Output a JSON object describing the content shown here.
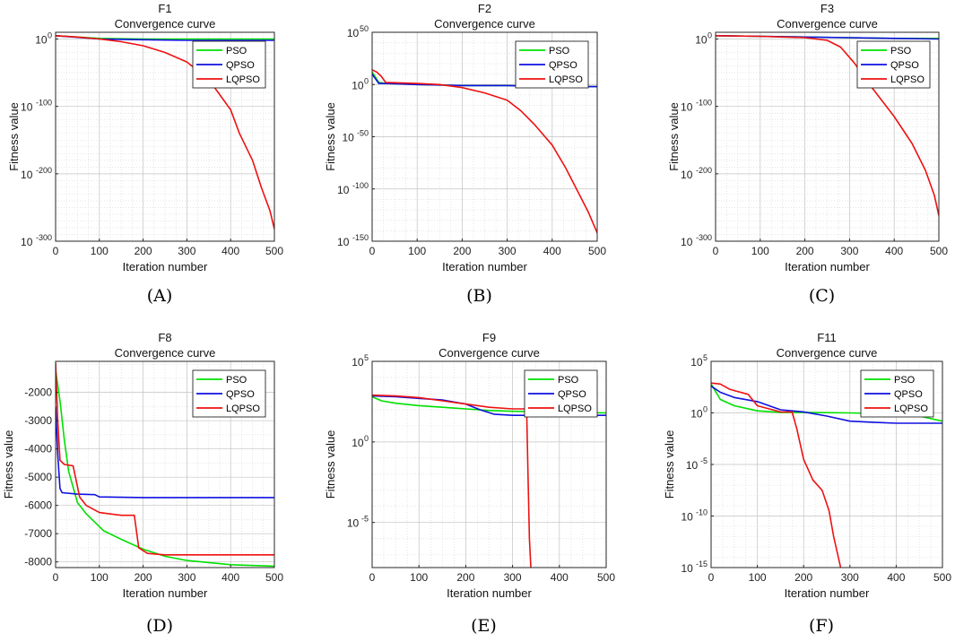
{
  "colors": {
    "PSO": "#00e000",
    "QPSO": "#1010e0",
    "LQPSO": "#ee1111",
    "grid": "#d6d6d6",
    "axis": "#262626"
  },
  "chart_data": [
    {
      "panel": "A",
      "caption": "(A)",
      "function_label": "F1",
      "title": "Convergence curve",
      "type": "line",
      "yscale": "log10",
      "xlabel": "Iteration number",
      "ylabel": "Fitness value",
      "xlim": [
        0,
        500
      ],
      "ylim": [
        -300,
        10
      ],
      "xticks": [
        "0",
        "100",
        "200",
        "300",
        "400",
        "500"
      ],
      "yticks": [
        {
          "base": "10",
          "exp": "0",
          "value": 0
        },
        {
          "base": "10",
          "exp": "-100",
          "value": -100
        },
        {
          "base": "10",
          "exp": "-200",
          "value": -200
        },
        {
          "base": "10",
          "exp": "-300",
          "value": -300
        }
      ],
      "legend": [
        "PSO",
        "QPSO",
        "LQPSO"
      ],
      "series": [
        {
          "name": "PSO",
          "points": [
            [
              0,
              5
            ],
            [
              100,
              1
            ],
            [
              200,
              0
            ],
            [
              300,
              0
            ],
            [
              400,
              0
            ],
            [
              500,
              0
            ]
          ]
        },
        {
          "name": "QPSO",
          "points": [
            [
              0,
              5
            ],
            [
              100,
              0
            ],
            [
              200,
              -1
            ],
            [
              300,
              -2
            ],
            [
              400,
              -2
            ],
            [
              500,
              -2
            ]
          ]
        },
        {
          "name": "LQPSO",
          "points": [
            [
              0,
              5
            ],
            [
              50,
              3
            ],
            [
              100,
              0
            ],
            [
              150,
              -4
            ],
            [
              200,
              -10
            ],
            [
              250,
              -20
            ],
            [
              300,
              -34
            ],
            [
              350,
              -60
            ],
            [
              400,
              -105
            ],
            [
              420,
              -140
            ],
            [
              450,
              -180
            ],
            [
              470,
              -220
            ],
            [
              490,
              -255
            ],
            [
              500,
              -282
            ]
          ]
        }
      ]
    },
    {
      "panel": "B",
      "caption": "(B)",
      "function_label": "F2",
      "title": "Convergence curve",
      "type": "line",
      "yscale": "log10",
      "xlabel": "Iteration number",
      "ylabel": "Fitness value",
      "xlim": [
        0,
        500
      ],
      "ylim": [
        -150,
        50
      ],
      "xticks": [
        "0",
        "100",
        "200",
        "300",
        "400",
        "500"
      ],
      "yticks": [
        {
          "base": "10",
          "exp": "50",
          "value": 50
        },
        {
          "base": "10",
          "exp": "0",
          "value": 0
        },
        {
          "base": "10",
          "exp": "-50",
          "value": -50
        },
        {
          "base": "10",
          "exp": "-100",
          "value": -100
        },
        {
          "base": "10",
          "exp": "-150",
          "value": -150
        }
      ],
      "legend": [
        "PSO",
        "QPSO",
        "LQPSO"
      ],
      "series": [
        {
          "name": "PSO",
          "points": [
            [
              0,
              12
            ],
            [
              15,
              2
            ],
            [
              30,
              1
            ],
            [
              100,
              0
            ],
            [
              200,
              -1
            ],
            [
              300,
              -1
            ],
            [
              400,
              -2
            ],
            [
              500,
              -2
            ]
          ]
        },
        {
          "name": "QPSO",
          "points": [
            [
              0,
              10
            ],
            [
              15,
              1
            ],
            [
              30,
              1
            ],
            [
              100,
              0
            ],
            [
              200,
              -1
            ],
            [
              300,
              -1
            ],
            [
              400,
              -2
            ],
            [
              500,
              -2
            ]
          ]
        },
        {
          "name": "LQPSO",
          "points": [
            [
              0,
              14
            ],
            [
              10,
              12
            ],
            [
              20,
              8
            ],
            [
              30,
              2
            ],
            [
              100,
              1
            ],
            [
              150,
              0
            ],
            [
              200,
              -3
            ],
            [
              250,
              -8
            ],
            [
              300,
              -15
            ],
            [
              330,
              -25
            ],
            [
              360,
              -38
            ],
            [
              400,
              -58
            ],
            [
              430,
              -80
            ],
            [
              460,
              -105
            ],
            [
              480,
              -122
            ],
            [
              500,
              -142
            ]
          ]
        }
      ]
    },
    {
      "panel": "C",
      "caption": "(C)",
      "function_label": "F3",
      "title": "Convergence curve",
      "type": "line",
      "yscale": "log10",
      "xlabel": "Iteration number",
      "ylabel": "Fitness value",
      "xlim": [
        0,
        500
      ],
      "ylim": [
        -300,
        10
      ],
      "xticks": [
        "0",
        "100",
        "200",
        "300",
        "400",
        "500"
      ],
      "yticks": [
        {
          "base": "10",
          "exp": "0",
          "value": 0
        },
        {
          "base": "10",
          "exp": "-100",
          "value": -100
        },
        {
          "base": "10",
          "exp": "-200",
          "value": -200
        },
        {
          "base": "10",
          "exp": "-300",
          "value": -300
        }
      ],
      "legend": [
        "PSO",
        "QPSO",
        "LQPSO"
      ],
      "series": [
        {
          "name": "PSO",
          "points": [
            [
              0,
              5
            ],
            [
              100,
              4
            ],
            [
              200,
              3
            ],
            [
              300,
              2
            ],
            [
              400,
              1
            ],
            [
              500,
              1
            ]
          ]
        },
        {
          "name": "QPSO",
          "points": [
            [
              0,
              5
            ],
            [
              100,
              4
            ],
            [
              200,
              3
            ],
            [
              300,
              2
            ],
            [
              400,
              1
            ],
            [
              500,
              0
            ]
          ]
        },
        {
          "name": "LQPSO",
          "points": [
            [
              0,
              5
            ],
            [
              100,
              4
            ],
            [
              200,
              2
            ],
            [
              250,
              -2
            ],
            [
              280,
              -12
            ],
            [
              310,
              -35
            ],
            [
              350,
              -72
            ],
            [
              400,
              -115
            ],
            [
              440,
              -155
            ],
            [
              470,
              -195
            ],
            [
              490,
              -232
            ],
            [
              500,
              -262
            ]
          ]
        }
      ]
    },
    {
      "panel": "D",
      "caption": "(D)",
      "function_label": "F8",
      "title": "Convergence curve",
      "type": "line",
      "yscale": "linear",
      "xlabel": "Iteration number",
      "ylabel": "Fitness value",
      "xlim": [
        0,
        500
      ],
      "ylim": [
        -8200,
        -900
      ],
      "xticks": [
        "0",
        "100",
        "200",
        "300",
        "400",
        "500"
      ],
      "yticks": [
        {
          "label": "-2000",
          "value": -2000
        },
        {
          "label": "-3000",
          "value": -3000
        },
        {
          "label": "-4000",
          "value": -4000
        },
        {
          "label": "-5000",
          "value": -5000
        },
        {
          "label": "-6000",
          "value": -6000
        },
        {
          "label": "-7000",
          "value": -7000
        },
        {
          "label": "-8000",
          "value": -8000
        }
      ],
      "legend": [
        "PSO",
        "QPSO",
        "LQPSO"
      ],
      "series": [
        {
          "name": "PSO",
          "points": [
            [
              0,
              -1200
            ],
            [
              10,
              -2300
            ],
            [
              20,
              -3700
            ],
            [
              30,
              -4800
            ],
            [
              50,
              -5900
            ],
            [
              70,
              -6300
            ],
            [
              90,
              -6600
            ],
            [
              110,
              -6900
            ],
            [
              150,
              -7200
            ],
            [
              200,
              -7550
            ],
            [
              250,
              -7800
            ],
            [
              300,
              -7950
            ],
            [
              400,
              -8100
            ],
            [
              500,
              -8150
            ]
          ]
        },
        {
          "name": "QPSO",
          "points": [
            [
              0,
              -2500
            ],
            [
              5,
              -4200
            ],
            [
              10,
              -5400
            ],
            [
              15,
              -5550
            ],
            [
              50,
              -5600
            ],
            [
              90,
              -5620
            ],
            [
              100,
              -5700
            ],
            [
              200,
              -5720
            ],
            [
              500,
              -5720
            ]
          ]
        },
        {
          "name": "LQPSO",
          "points": [
            [
              0,
              -950
            ],
            [
              5,
              -3000
            ],
            [
              10,
              -4400
            ],
            [
              20,
              -4550
            ],
            [
              40,
              -4600
            ],
            [
              55,
              -5700
            ],
            [
              70,
              -6000
            ],
            [
              100,
              -6250
            ],
            [
              150,
              -6350
            ],
            [
              180,
              -6350
            ],
            [
              190,
              -7500
            ],
            [
              210,
              -7700
            ],
            [
              250,
              -7750
            ],
            [
              500,
              -7750
            ]
          ]
        }
      ]
    },
    {
      "panel": "E",
      "caption": "(E)",
      "function_label": "F9",
      "title": "Convergence curve",
      "type": "line",
      "yscale": "log10",
      "xlabel": "Iteration number",
      "ylabel": "Fitness value",
      "xlim": [
        0,
        500
      ],
      "ylim": [
        -7.8,
        5
      ],
      "xticks": [
        "0",
        "100",
        "200",
        "300",
        "400",
        "500"
      ],
      "yticks": [
        {
          "base": "10",
          "exp": "5",
          "value": 5
        },
        {
          "base": "10",
          "exp": "0",
          "value": 0
        },
        {
          "base": "10",
          "exp": "-5",
          "value": -5
        }
      ],
      "legend": [
        "PSO",
        "QPSO",
        "LQPSO"
      ],
      "series": [
        {
          "name": "PSO",
          "points": [
            [
              0,
              2.8
            ],
            [
              20,
              2.55
            ],
            [
              50,
              2.4
            ],
            [
              100,
              2.25
            ],
            [
              150,
              2.15
            ],
            [
              200,
              2.05
            ],
            [
              250,
              1.95
            ],
            [
              300,
              1.9
            ],
            [
              400,
              1.85
            ],
            [
              500,
              1.8
            ]
          ]
        },
        {
          "name": "QPSO",
          "points": [
            [
              0,
              2.85
            ],
            [
              50,
              2.8
            ],
            [
              100,
              2.7
            ],
            [
              150,
              2.6
            ],
            [
              200,
              2.35
            ],
            [
              230,
              2.0
            ],
            [
              260,
              1.72
            ],
            [
              300,
              1.65
            ],
            [
              400,
              1.65
            ],
            [
              500,
              1.65
            ]
          ]
        },
        {
          "name": "LQPSO",
          "points": [
            [
              0,
              2.9
            ],
            [
              50,
              2.85
            ],
            [
              100,
              2.75
            ],
            [
              150,
              2.55
            ],
            [
              200,
              2.35
            ],
            [
              250,
              2.15
            ],
            [
              300,
              2.05
            ],
            [
              330,
              2.05
            ],
            [
              333,
              -2
            ],
            [
              336,
              -6
            ],
            [
              339,
              -7.8
            ]
          ]
        }
      ]
    },
    {
      "panel": "F",
      "caption": "(F)",
      "function_label": "F11",
      "title": "Convergence curve",
      "type": "line",
      "yscale": "log10",
      "xlabel": "Iteration number",
      "ylabel": "Fitness value",
      "xlim": [
        0,
        500
      ],
      "ylim": [
        -15,
        5
      ],
      "xticks": [
        "0",
        "100",
        "200",
        "300",
        "400",
        "500"
      ],
      "yticks": [
        {
          "base": "10",
          "exp": "5",
          "value": 5
        },
        {
          "base": "10",
          "exp": "0",
          "value": 0
        },
        {
          "base": "10",
          "exp": "-5",
          "value": -5
        },
        {
          "base": "10",
          "exp": "-10",
          "value": -10
        },
        {
          "base": "10",
          "exp": "-15",
          "value": -15
        }
      ],
      "legend": [
        "PSO",
        "QPSO",
        "LQPSO"
      ],
      "series": [
        {
          "name": "PSO",
          "points": [
            [
              0,
              2.8
            ],
            [
              20,
              1.3
            ],
            [
              50,
              0.7
            ],
            [
              100,
              0.2
            ],
            [
              150,
              0.05
            ],
            [
              200,
              0.05
            ],
            [
              300,
              0
            ],
            [
              400,
              -0.1
            ],
            [
              450,
              -0.3
            ],
            [
              500,
              -0.8
            ]
          ]
        },
        {
          "name": "QPSO",
          "points": [
            [
              0,
              2.6
            ],
            [
              20,
              2.0
            ],
            [
              50,
              1.5
            ],
            [
              100,
              1.1
            ],
            [
              150,
              0.3
            ],
            [
              200,
              0.1
            ],
            [
              250,
              -0.3
            ],
            [
              300,
              -0.8
            ],
            [
              350,
              -0.9
            ],
            [
              400,
              -1.0
            ],
            [
              500,
              -1.0
            ]
          ]
        },
        {
          "name": "LQPSO",
          "points": [
            [
              0,
              2.9
            ],
            [
              20,
              2.8
            ],
            [
              40,
              2.3
            ],
            [
              80,
              1.8
            ],
            [
              100,
              0.7
            ],
            [
              150,
              0.1
            ],
            [
              175,
              0.1
            ],
            [
              185,
              -1.5
            ],
            [
              200,
              -4.5
            ],
            [
              220,
              -6.5
            ],
            [
              240,
              -7.5
            ],
            [
              255,
              -9.5
            ],
            [
              265,
              -12
            ],
            [
              275,
              -14
            ],
            [
              280,
              -15
            ]
          ]
        }
      ]
    }
  ]
}
